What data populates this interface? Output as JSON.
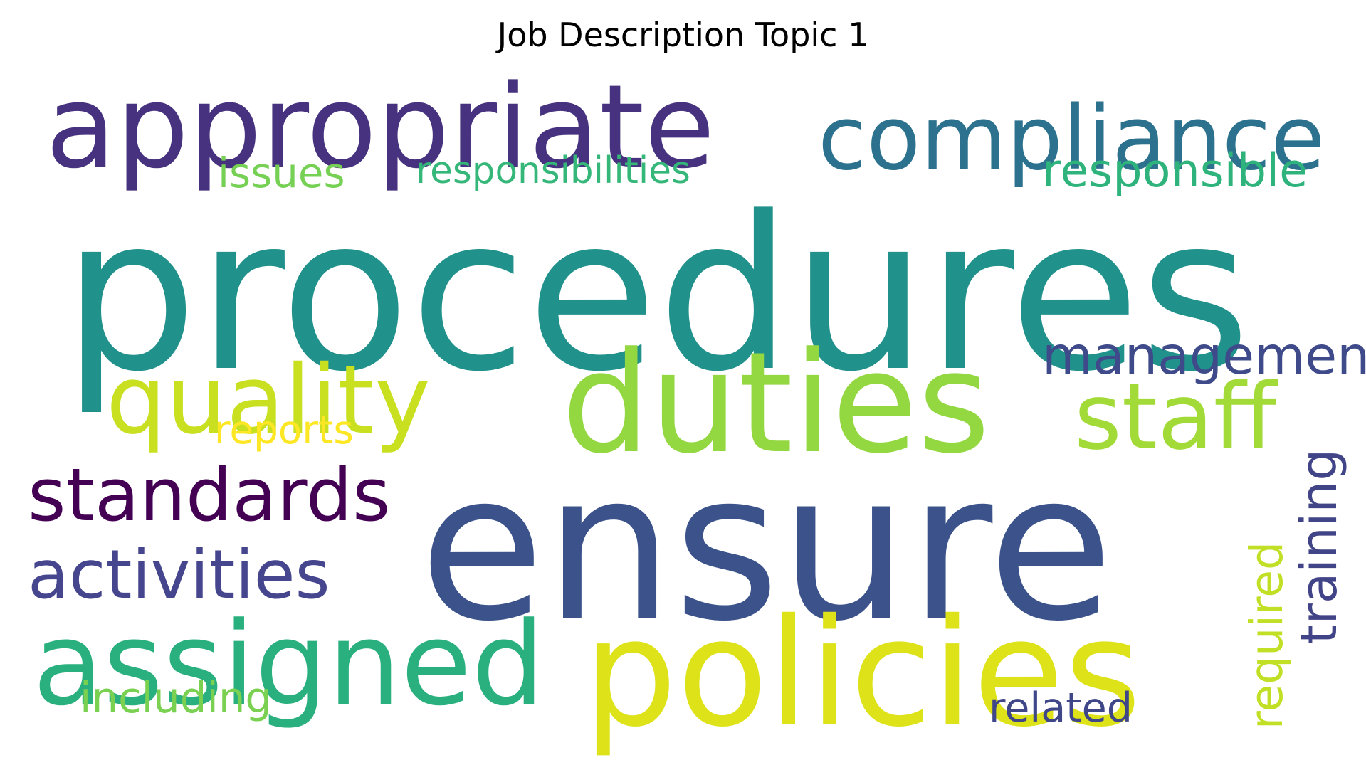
{
  "title": "Job Description Topic 1",
  "words": [
    {
      "text": "procedures",
      "color": "#21918c"
    },
    {
      "text": "ensure",
      "color": "#3b528b"
    },
    {
      "text": "appropriate",
      "color": "#46327e"
    },
    {
      "text": "policies",
      "color": "#dde318"
    },
    {
      "text": "duties",
      "color": "#93d741"
    },
    {
      "text": "compliance",
      "color": "#2c728e"
    },
    {
      "text": "assigned",
      "color": "#2ab07f"
    },
    {
      "text": "quality",
      "color": "#c8e020"
    },
    {
      "text": "standards",
      "color": "#440154"
    },
    {
      "text": "staff",
      "color": "#a2da37"
    },
    {
      "text": "activities",
      "color": "#46468e"
    },
    {
      "text": "management",
      "color": "#3e4a89"
    },
    {
      "text": "responsibilities",
      "color": "#35b779"
    },
    {
      "text": "responsible",
      "color": "#2eb37c"
    },
    {
      "text": "training",
      "color": "#414487"
    },
    {
      "text": "required",
      "color": "#c0df25"
    },
    {
      "text": "issues",
      "color": "#75d054"
    },
    {
      "text": "reports",
      "color": "#fde725"
    },
    {
      "text": "including",
      "color": "#7ad151"
    },
    {
      "text": "related",
      "color": "#3f4788"
    }
  ]
}
